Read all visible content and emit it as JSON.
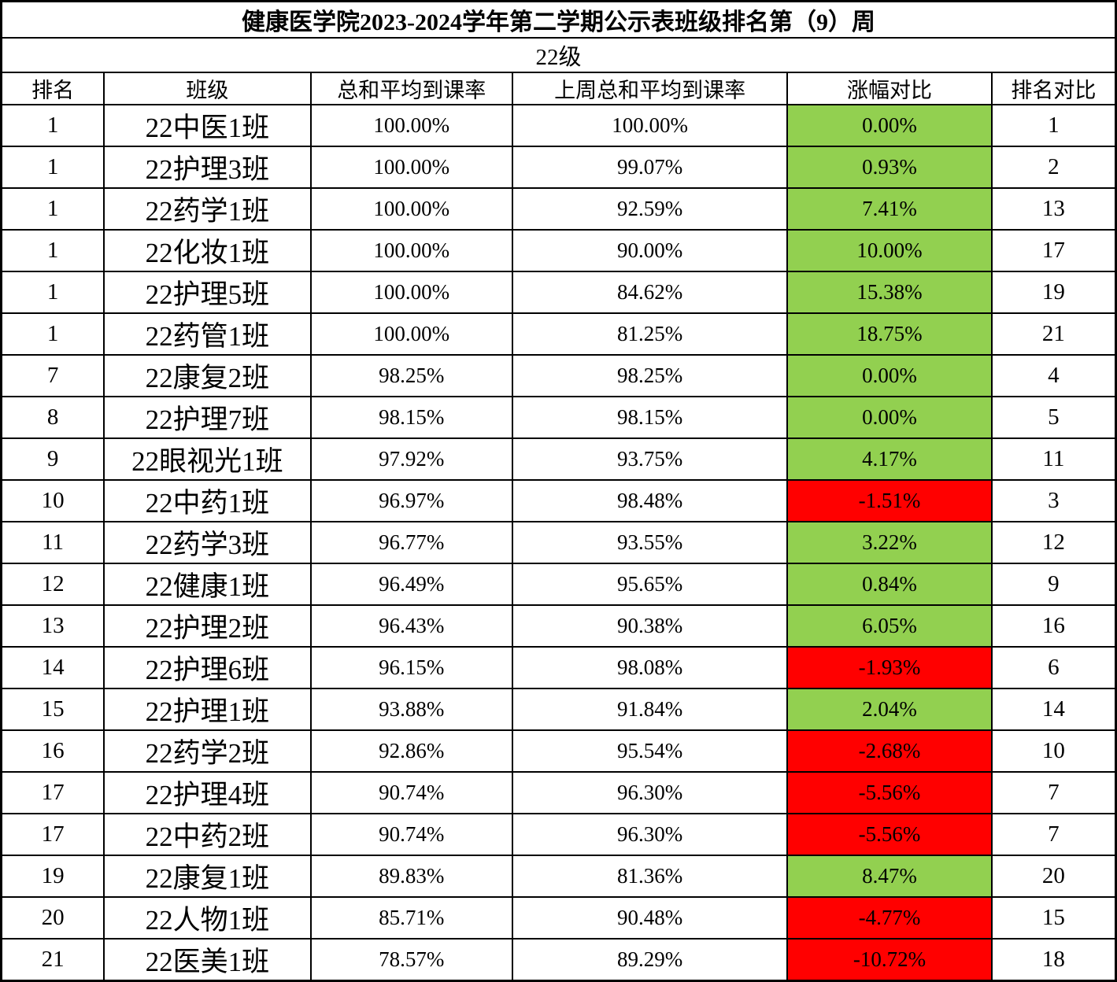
{
  "colors": {
    "positive_bg": "#92D050",
    "negative_bg": "#FF0000",
    "border": "#000000",
    "background": "#FFFFFF",
    "text": "#000000"
  },
  "chart_data": {
    "type": "table",
    "title": "健康医学院2023-2024学年第二学期公示表班级排名第（9）周",
    "subtitle": "22级",
    "columns": [
      "排名",
      "班级",
      "总和平均到课率",
      "上周总和平均到课率",
      "涨幅对比",
      "排名对比"
    ],
    "change_column_index": 4,
    "rows": [
      [
        "1",
        "22中医1班",
        "100.00%",
        "100.00%",
        "0.00%",
        "1"
      ],
      [
        "1",
        "22护理3班",
        "100.00%",
        "99.07%",
        "0.93%",
        "2"
      ],
      [
        "1",
        "22药学1班",
        "100.00%",
        "92.59%",
        "7.41%",
        "13"
      ],
      [
        "1",
        "22化妆1班",
        "100.00%",
        "90.00%",
        "10.00%",
        "17"
      ],
      [
        "1",
        "22护理5班",
        "100.00%",
        "84.62%",
        "15.38%",
        "19"
      ],
      [
        "1",
        "22药管1班",
        "100.00%",
        "81.25%",
        "18.75%",
        "21"
      ],
      [
        "7",
        "22康复2班",
        "98.25%",
        "98.25%",
        "0.00%",
        "4"
      ],
      [
        "8",
        "22护理7班",
        "98.15%",
        "98.15%",
        "0.00%",
        "5"
      ],
      [
        "9",
        "22眼视光1班",
        "97.92%",
        "93.75%",
        "4.17%",
        "11"
      ],
      [
        "10",
        "22中药1班",
        "96.97%",
        "98.48%",
        "-1.51%",
        "3"
      ],
      [
        "11",
        "22药学3班",
        "96.77%",
        "93.55%",
        "3.22%",
        "12"
      ],
      [
        "12",
        "22健康1班",
        "96.49%",
        "95.65%",
        "0.84%",
        "9"
      ],
      [
        "13",
        "22护理2班",
        "96.43%",
        "90.38%",
        "6.05%",
        "16"
      ],
      [
        "14",
        "22护理6班",
        "96.15%",
        "98.08%",
        "-1.93%",
        "6"
      ],
      [
        "15",
        "22护理1班",
        "93.88%",
        "91.84%",
        "2.04%",
        "14"
      ],
      [
        "16",
        "22药学2班",
        "92.86%",
        "95.54%",
        "-2.68%",
        "10"
      ],
      [
        "17",
        "22护理4班",
        "90.74%",
        "96.30%",
        "-5.56%",
        "7"
      ],
      [
        "17",
        "22中药2班",
        "90.74%",
        "96.30%",
        "-5.56%",
        "7"
      ],
      [
        "19",
        "22康复1班",
        "89.83%",
        "81.36%",
        "8.47%",
        "20"
      ],
      [
        "20",
        "22人物1班",
        "85.71%",
        "90.48%",
        "-4.77%",
        "15"
      ],
      [
        "21",
        "22医美1班",
        "78.57%",
        "89.29%",
        "-10.72%",
        "18"
      ]
    ]
  }
}
